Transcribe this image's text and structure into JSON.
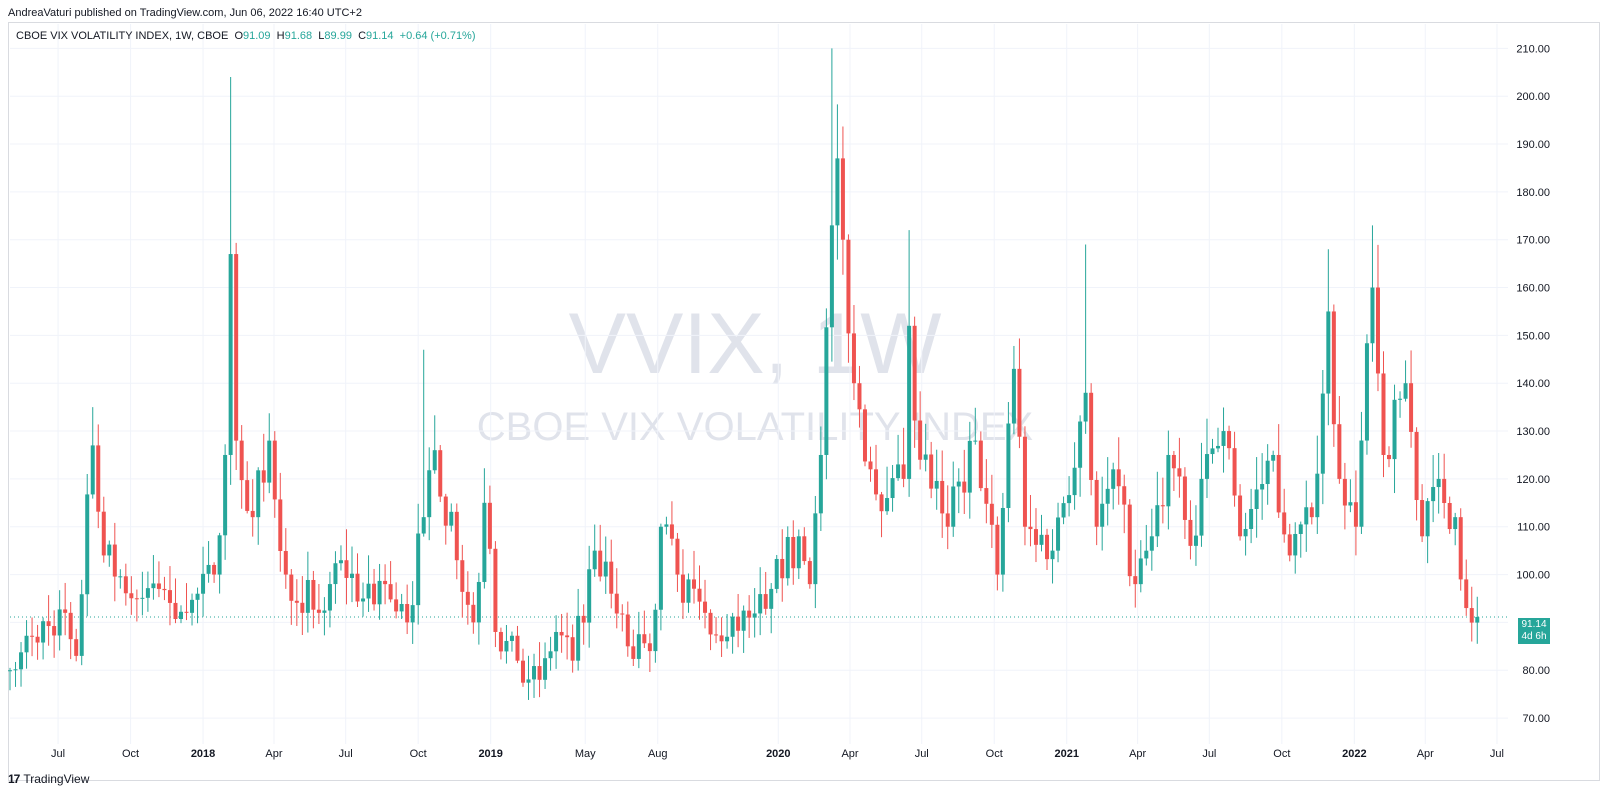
{
  "header": {
    "published": "AndreaVaturi published on TradingView.com, Jun 06, 2022 16:40 UTC+2"
  },
  "legend": {
    "symbol": "CBOE VIX VOLATILITY INDEX, 1W, CBOE",
    "o_label": "O",
    "o_value": "91.09",
    "h_label": "H",
    "h_value": "91.68",
    "l_label": "L",
    "l_value": "89.99",
    "c_label": "C",
    "c_value": "91.14",
    "change": "+0.64 (+0.71%)"
  },
  "watermark": {
    "line1": "VVIX, 1W",
    "line2": "CBOE VIX VOLATILITY INDEX"
  },
  "price_tag": {
    "price": "91.14",
    "countdown": "4d 6h"
  },
  "footer": {
    "logo": "17",
    "brand": "TradingView"
  },
  "colors": {
    "up": "#26a69a",
    "down": "#ef5350",
    "grid": "#f0f3fa",
    "axis_text": "#131722"
  },
  "chart_data": {
    "type": "candlestick",
    "title": "CBOE VIX VOLATILITY INDEX, 1W, CBOE",
    "ylim": [
      65,
      213
    ],
    "y_ticks": [
      "70.00",
      "80.00",
      "90.00",
      "100.00",
      "110.00",
      "120.00",
      "130.00",
      "140.00",
      "150.00",
      "160.00",
      "170.00",
      "180.00",
      "190.00",
      "200.00",
      "210.00"
    ],
    "x_start": "2017-05-01",
    "x_end": "2022-07-15",
    "x_ticks": [
      {
        "label": "Jul",
        "date": "2017-07-01"
      },
      {
        "label": "Oct",
        "date": "2017-10-01"
      },
      {
        "label": "2018",
        "date": "2018-01-01"
      },
      {
        "label": "Apr",
        "date": "2018-04-01"
      },
      {
        "label": "Jul",
        "date": "2018-07-01"
      },
      {
        "label": "Oct",
        "date": "2018-10-01"
      },
      {
        "label": "2019",
        "date": "2019-01-01"
      },
      {
        "label": "May",
        "date": "2019-05-01"
      },
      {
        "label": "Aug",
        "date": "2019-08-01"
      },
      {
        "label": "2020",
        "date": "2020-01-01"
      },
      {
        "label": "Apr",
        "date": "2020-04-01"
      },
      {
        "label": "Jul",
        "date": "2020-07-01"
      },
      {
        "label": "Oct",
        "date": "2020-10-01"
      },
      {
        "label": "2021",
        "date": "2021-01-01"
      },
      {
        "label": "Apr",
        "date": "2021-04-01"
      },
      {
        "label": "Jul",
        "date": "2021-07-01"
      },
      {
        "label": "Oct",
        "date": "2021-10-01"
      },
      {
        "label": "2022",
        "date": "2022-01-01"
      },
      {
        "label": "Apr",
        "date": "2022-04-01"
      },
      {
        "label": "Jul",
        "date": "2022-07-01"
      }
    ],
    "last_price": 91.14,
    "anchors": [
      {
        "date": "2017-05-01",
        "close": 80
      },
      {
        "date": "2017-05-29",
        "close": 87
      },
      {
        "date": "2017-07-10",
        "close": 92
      },
      {
        "date": "2017-07-24",
        "close": 83
      },
      {
        "date": "2017-08-14",
        "close": 127
      },
      {
        "date": "2017-08-28",
        "close": 104
      },
      {
        "date": "2017-10-09",
        "close": 95
      },
      {
        "date": "2017-11-06",
        "close": 97
      },
      {
        "date": "2017-12-11",
        "close": 92
      },
      {
        "date": "2018-01-15",
        "close": 100
      },
      {
        "date": "2018-01-29",
        "close": 125
      },
      {
        "date": "2018-02-05",
        "close": 167
      },
      {
        "date": "2018-02-12",
        "close": 128
      },
      {
        "date": "2018-03-05",
        "close": 112
      },
      {
        "date": "2018-03-26",
        "close": 128
      },
      {
        "date": "2018-04-16",
        "close": 100
      },
      {
        "date": "2018-05-28",
        "close": 92
      },
      {
        "date": "2018-06-25",
        "close": 103
      },
      {
        "date": "2018-07-23",
        "close": 95
      },
      {
        "date": "2018-08-20",
        "close": 98
      },
      {
        "date": "2018-09-17",
        "close": 90
      },
      {
        "date": "2018-10-08",
        "close": 112
      },
      {
        "date": "2018-10-22",
        "close": 126
      },
      {
        "date": "2018-11-19",
        "close": 103
      },
      {
        "date": "2018-12-10",
        "close": 90
      },
      {
        "date": "2018-12-24",
        "close": 115
      },
      {
        "date": "2019-01-07",
        "close": 88
      },
      {
        "date": "2019-02-04",
        "close": 82
      },
      {
        "date": "2019-03-04",
        "close": 78
      },
      {
        "date": "2019-03-25",
        "close": 88
      },
      {
        "date": "2019-04-15",
        "close": 82
      },
      {
        "date": "2019-05-13",
        "close": 105
      },
      {
        "date": "2019-06-03",
        "close": 96
      },
      {
        "date": "2019-06-24",
        "close": 85
      },
      {
        "date": "2019-07-22",
        "close": 84
      },
      {
        "date": "2019-08-05",
        "close": 110
      },
      {
        "date": "2019-08-26",
        "close": 100
      },
      {
        "date": "2019-09-30",
        "close": 92
      },
      {
        "date": "2019-10-28",
        "close": 87
      },
      {
        "date": "2019-11-25",
        "close": 91
      },
      {
        "date": "2019-12-23",
        "close": 97
      },
      {
        "date": "2020-01-27",
        "close": 108
      },
      {
        "date": "2020-02-10",
        "close": 98
      },
      {
        "date": "2020-02-24",
        "close": 125
      },
      {
        "date": "2020-03-09",
        "close": 173
      },
      {
        "date": "2020-03-16",
        "close": 187
      },
      {
        "date": "2020-03-23",
        "close": 170
      },
      {
        "date": "2020-04-06",
        "close": 140
      },
      {
        "date": "2020-04-27",
        "close": 122
      },
      {
        "date": "2020-05-18",
        "close": 116
      },
      {
        "date": "2020-06-08",
        "close": 120
      },
      {
        "date": "2020-06-15",
        "close": 152
      },
      {
        "date": "2020-06-29",
        "close": 124
      },
      {
        "date": "2020-08-03",
        "close": 110
      },
      {
        "date": "2020-09-07",
        "close": 128
      },
      {
        "date": "2020-10-05",
        "close": 100
      },
      {
        "date": "2020-10-26",
        "close": 143
      },
      {
        "date": "2020-11-09",
        "close": 110
      },
      {
        "date": "2020-12-14",
        "close": 105
      },
      {
        "date": "2021-01-25",
        "close": 138
      },
      {
        "date": "2021-02-08",
        "close": 110
      },
      {
        "date": "2021-03-01",
        "close": 122
      },
      {
        "date": "2021-03-29",
        "close": 98
      },
      {
        "date": "2021-04-19",
        "close": 108
      },
      {
        "date": "2021-05-10",
        "close": 125
      },
      {
        "date": "2021-06-07",
        "close": 106
      },
      {
        "date": "2021-06-21",
        "close": 120
      },
      {
        "date": "2021-07-19",
        "close": 130
      },
      {
        "date": "2021-08-09",
        "close": 108
      },
      {
        "date": "2021-09-20",
        "close": 125
      },
      {
        "date": "2021-10-11",
        "close": 104
      },
      {
        "date": "2021-11-08",
        "close": 112
      },
      {
        "date": "2021-11-29",
        "close": 155
      },
      {
        "date": "2021-12-13",
        "close": 120
      },
      {
        "date": "2022-01-03",
        "close": 110
      },
      {
        "date": "2022-01-24",
        "close": 160
      },
      {
        "date": "2022-02-07",
        "close": 125
      },
      {
        "date": "2022-03-07",
        "close": 140
      },
      {
        "date": "2022-03-28",
        "close": 108
      },
      {
        "date": "2022-04-18",
        "close": 120
      },
      {
        "date": "2022-05-09",
        "close": 112
      },
      {
        "date": "2022-05-23",
        "close": 93
      },
      {
        "date": "2022-06-06",
        "close": 91.14
      }
    ]
  }
}
